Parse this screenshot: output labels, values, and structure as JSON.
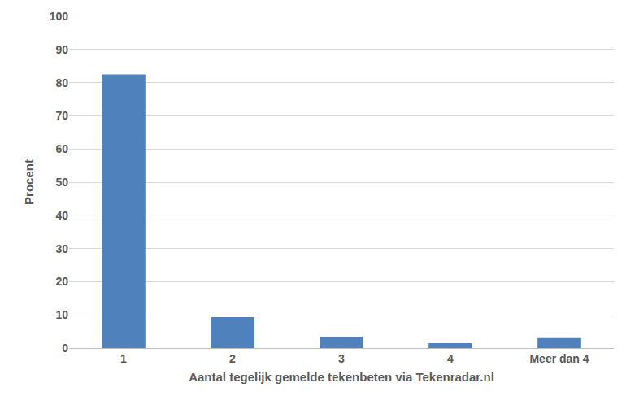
{
  "chart_data": {
    "type": "bar",
    "x_label": "Aantal tegelijk gemelde tekenbeten via Tekenradar.nl",
    "y_label": "Procent",
    "categories": [
      "1",
      "2",
      "3",
      "4",
      "Meer dan 4"
    ],
    "values": [
      82.5,
      9.3,
      3.4,
      1.5,
      3.0
    ],
    "color": "#4f81bd",
    "ylim": [
      0,
      100
    ],
    "yticks": [
      0,
      10,
      20,
      30,
      40,
      50,
      60,
      70,
      80,
      90,
      100
    ],
    "grid": true
  }
}
